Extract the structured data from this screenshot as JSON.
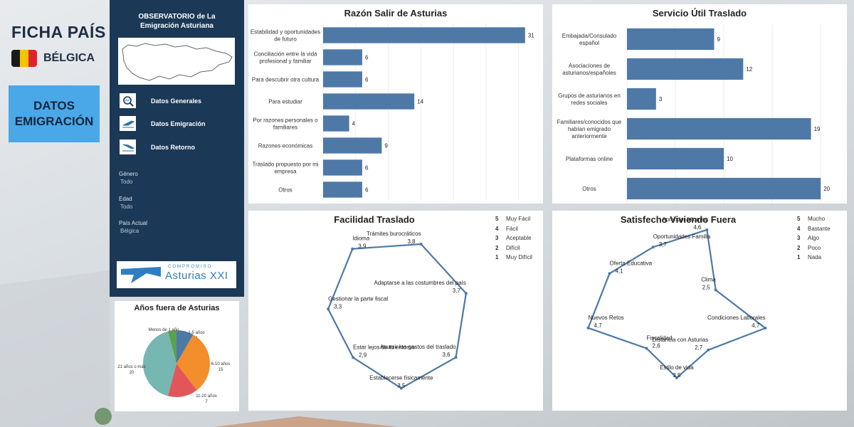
{
  "header": {
    "title": "FICHA PAÍS",
    "country": "BÉLGICA",
    "flag_colors": [
      "#1a1a1a",
      "#f5c400",
      "#e0222b"
    ]
  },
  "nav_button": {
    "line1": "DATOS",
    "line2": "EMIGRACIÓN"
  },
  "sidebar": {
    "title_line1": "OBSERVATORIO de La",
    "title_line2": "Emigración Asturiana",
    "items": [
      {
        "label": "Datos Generales",
        "icon": "magnifier-chart-icon"
      },
      {
        "label": "Datos Emigración",
        "icon": "plane-takeoff-icon"
      },
      {
        "label": "Datos Retorno",
        "icon": "plane-landing-icon"
      }
    ],
    "filters": [
      {
        "label": "Género",
        "value": "Todo"
      },
      {
        "label": "Edad",
        "value": "Todo"
      },
      {
        "label": "País Actual",
        "value": "Bélgica"
      }
    ],
    "logo": {
      "top": "COMPROMISO",
      "main": "Asturias XXI"
    }
  },
  "colors": {
    "bar": "#4e79a7",
    "sidebar": "#1b3856",
    "radar": "#4e79a7"
  },
  "chart_data": [
    {
      "id": "razon",
      "type": "bar",
      "orientation": "horizontal",
      "title": "Razón Salir de Asturias",
      "categories": [
        [
          "Estabilidad y oportunidades",
          "de futuro"
        ],
        [
          "Conciliación entre la vida",
          "profesional y familiar"
        ],
        [
          "Para descubrir otra cultura"
        ],
        [
          "Para estudiar"
        ],
        [
          "Por razones personales o",
          "familiares"
        ],
        [
          "Razones económicas"
        ],
        [
          "Traslado propuesto por mi",
          "empresa"
        ],
        [
          "Otros"
        ]
      ],
      "values": [
        31,
        6,
        6,
        14,
        4,
        9,
        6,
        6
      ],
      "xlim": [
        0,
        32
      ],
      "grid": true
    },
    {
      "id": "servicio",
      "type": "bar",
      "orientation": "horizontal",
      "title": "Servicio Útil Traslado",
      "categories": [
        [
          "Embajada/Consulado",
          "español"
        ],
        [
          "Asociaciones de",
          "asturianos/españoles"
        ],
        [
          "Grupos de asturianos en",
          "redes sociales"
        ],
        [
          "Familiares/conocidos que",
          "habían emigrado",
          "anteriormente"
        ],
        [
          "Plataformas online"
        ],
        [
          "Otros"
        ]
      ],
      "values": [
        9,
        12,
        3,
        19,
        10,
        20
      ],
      "xlim": [
        0,
        20.5
      ],
      "grid": true
    },
    {
      "id": "facilidad",
      "type": "radar",
      "title": "Facilidad Traslado",
      "scale": [
        1,
        5
      ],
      "legend": [
        {
          "key": "5",
          "label": "Muy Fácil"
        },
        {
          "key": "4",
          "label": "Fácil"
        },
        {
          "key": "3",
          "label": "Aceptable"
        },
        {
          "key": "2",
          "label": "Difícil"
        },
        {
          "key": "1",
          "label": "Muy Difícil"
        }
      ],
      "points": [
        {
          "label": "Trámites burocráticos",
          "value": "3,8"
        },
        {
          "label": "Adaptarse a las costumbres del país",
          "value": "3,7"
        },
        {
          "label": "Asumir los gastos del traslado",
          "value": "3,6"
        },
        {
          "label": "Establecerse físicamente",
          "value": "3,5"
        },
        {
          "label": "Estar lejos de tu entorno",
          "value": "2,9"
        },
        {
          "label": "Gestionar la parte fiscal",
          "value": "3,3"
        },
        {
          "label": "Idioma",
          "value": "3,9"
        }
      ]
    },
    {
      "id": "satisfecho",
      "type": "radar",
      "title": "Satisfecho Viviendo Fuera",
      "scale": [
        1,
        5
      ],
      "legend": [
        {
          "key": "5",
          "label": "Mucho"
        },
        {
          "key": "4",
          "label": "Bastante"
        },
        {
          "key": "3",
          "label": "Algo"
        },
        {
          "key": "2",
          "label": "Poco"
        },
        {
          "key": "1",
          "label": "Nada"
        }
      ],
      "points": [
        {
          "label": "Aprender Idiomas",
          "value": "4,6"
        },
        {
          "label": "Clima",
          "value": "2,5"
        },
        {
          "label": "Condiciones Laborales",
          "value": "4,7"
        },
        {
          "label": "Distancia con Asturias",
          "value": "2,7"
        },
        {
          "label": "Estilo de vida",
          "value": "3,5"
        },
        {
          "label": "Fiscalidad",
          "value": "2,6"
        },
        {
          "label": "Nuevos Retos",
          "value": "4,7"
        },
        {
          "label": "Oferta Educativa",
          "value": "4,1"
        },
        {
          "label": "Oportunidades Familia",
          "value": "3,7"
        }
      ]
    },
    {
      "id": "anos",
      "type": "pie",
      "title": "Años fuera de Asturias",
      "slices": [
        {
          "label": "Menos de 1 año",
          "value": 2,
          "color": "#59a14f"
        },
        {
          "label": "1-5 años",
          "value": 4,
          "color": "#4e79a7"
        },
        {
          "label": "6-10 años",
          "value": 15,
          "color": "#f28e2b"
        },
        {
          "label": "11-20 años",
          "value": 7,
          "color": "#e15759"
        },
        {
          "label": "21 años o más",
          "value": 20,
          "color": "#76b7b2"
        }
      ]
    }
  ]
}
